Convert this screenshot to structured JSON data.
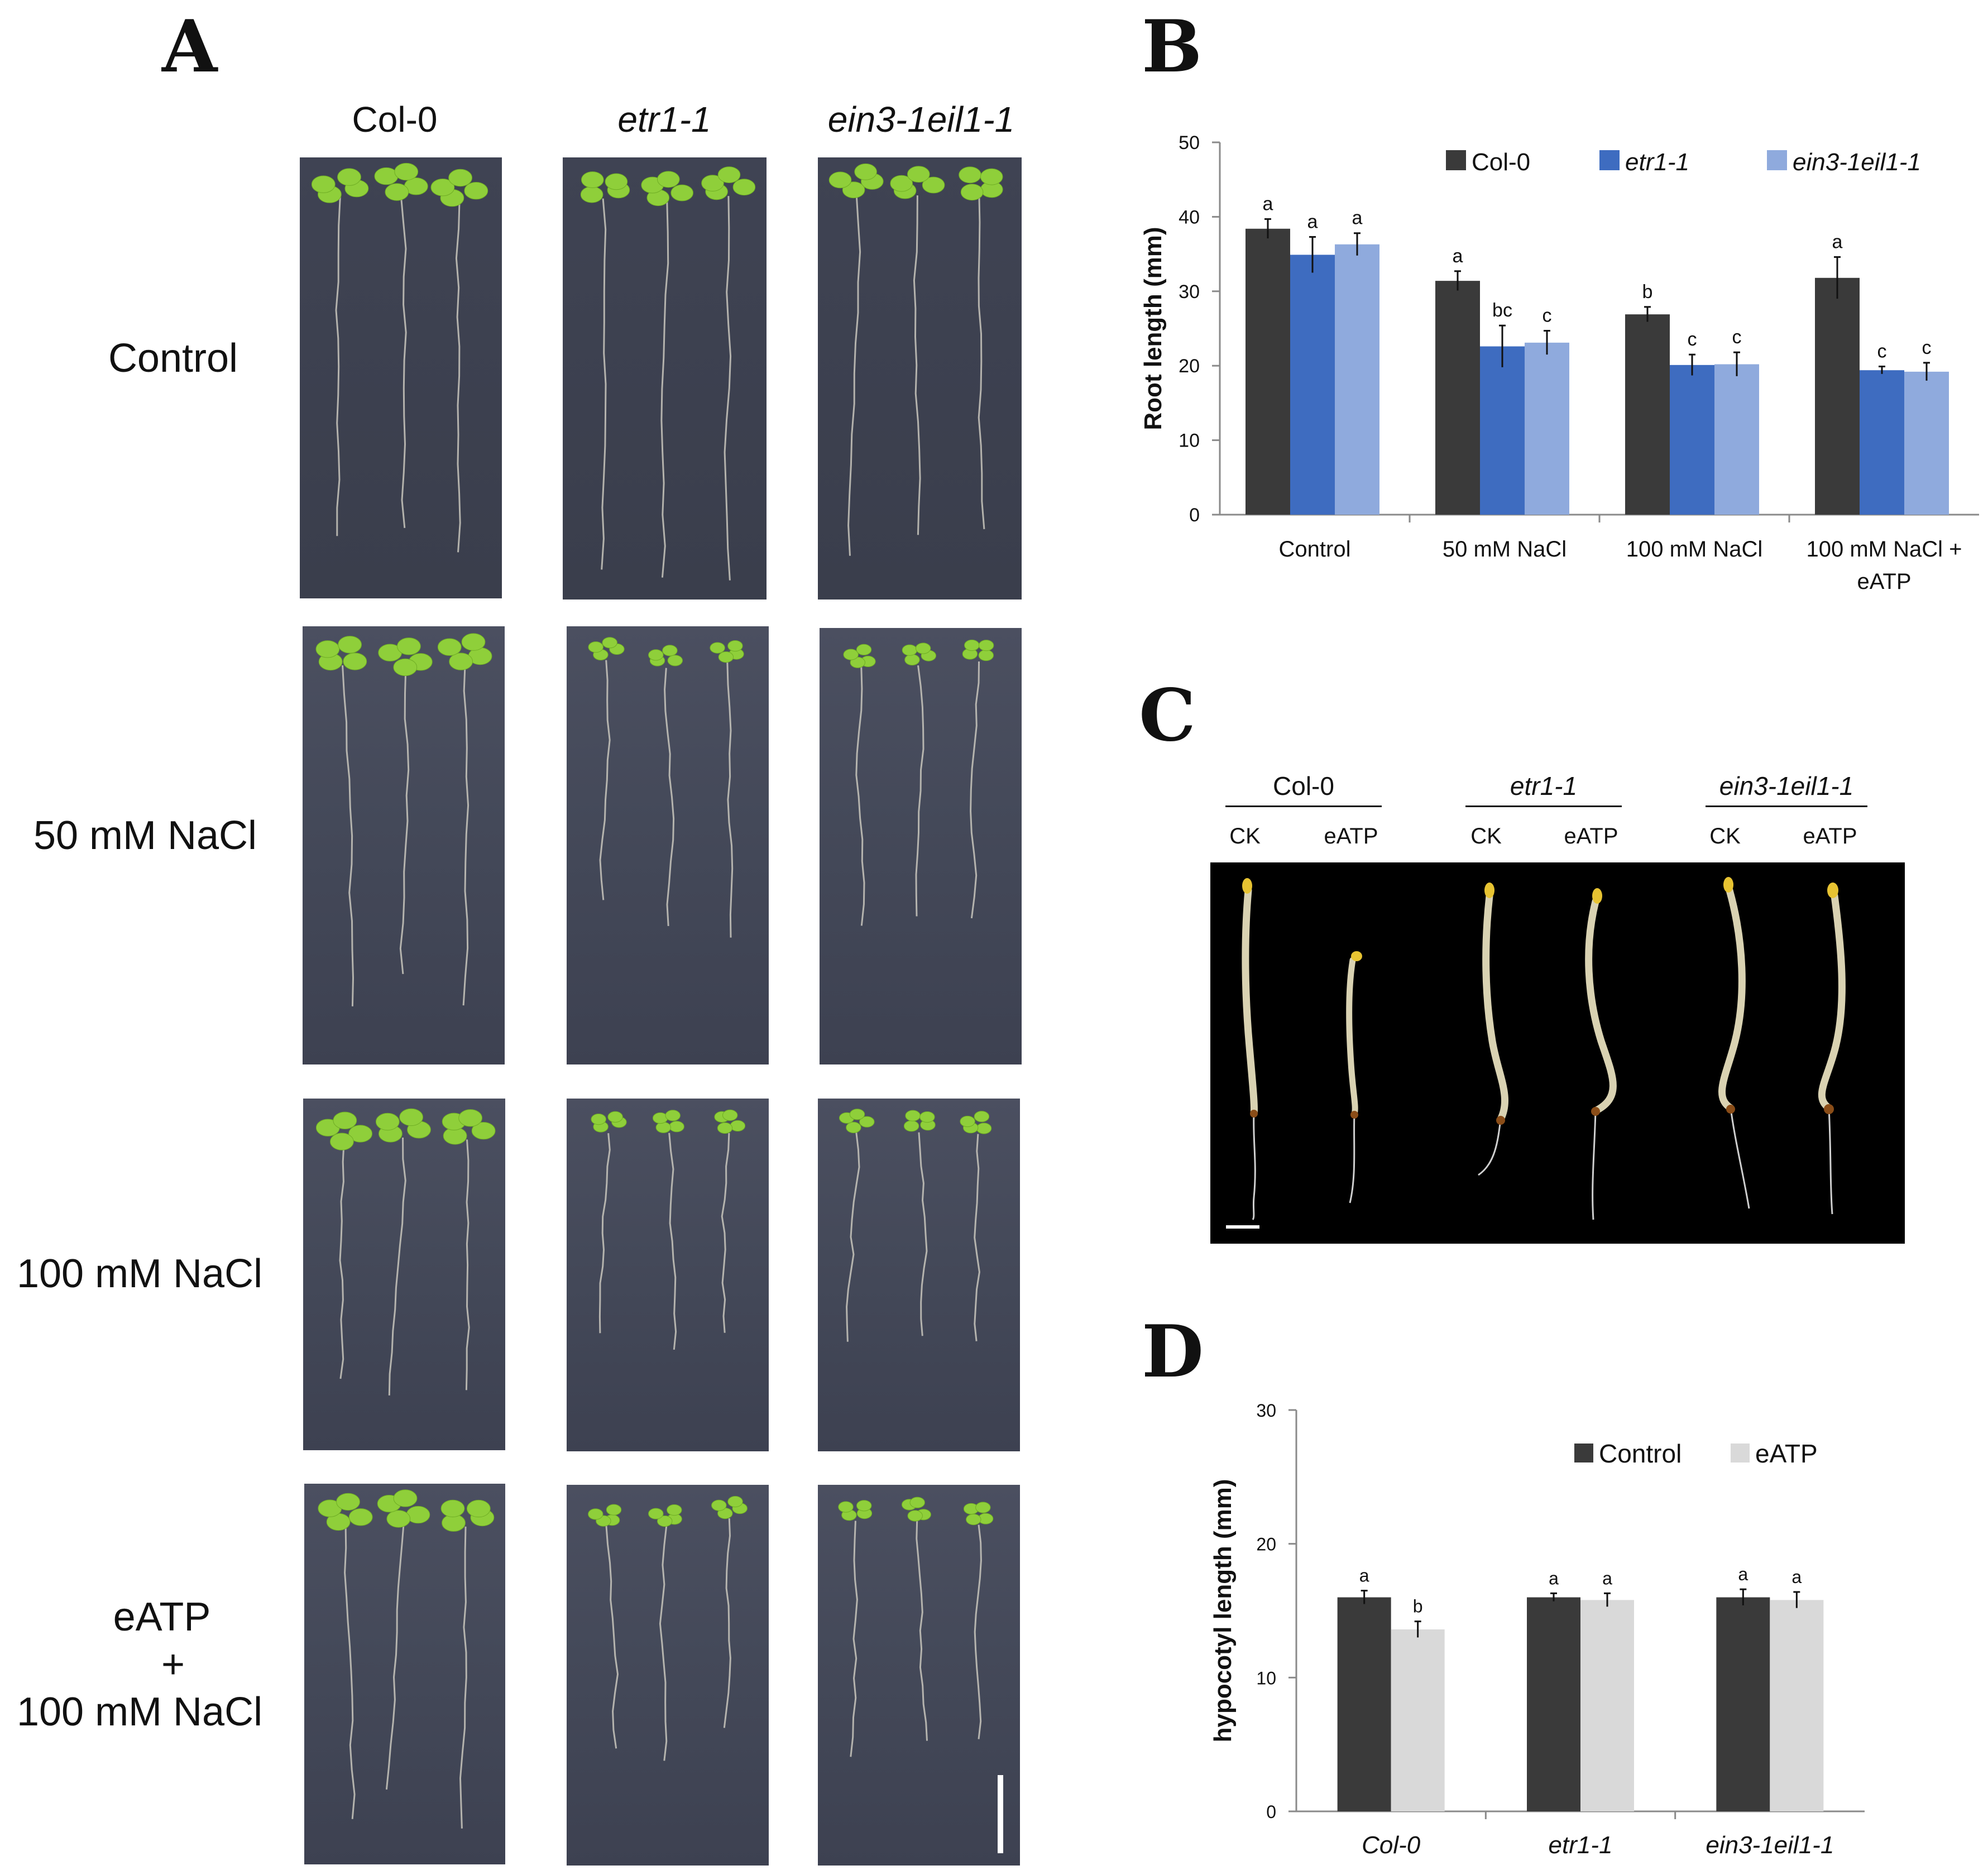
{
  "panels": {
    "A": "A",
    "B": "B",
    "C": "C",
    "D": "D"
  },
  "panel_a": {
    "columns": [
      "Col-0",
      "etr1-1",
      "ein3-1eil1-1"
    ],
    "rows": [
      "Control",
      "50 mM NaCl",
      "100 mM NaCl"
    ],
    "row4_lines": [
      "eATP",
      "+",
      "100 mM NaCl"
    ]
  },
  "panel_c": {
    "genotypes": [
      "Col-0",
      "etr1-1",
      "ein3-1eil1-1"
    ],
    "treatments": [
      "CK",
      "eATP",
      "CK",
      "eATP",
      "CK",
      "eATP"
    ]
  },
  "colors": {
    "col0": "#3a3a3a",
    "etr1": "#3e6cc0",
    "ein3": "#8faadd",
    "control": "#3a3a3a",
    "eatp": "#d9d9d9"
  },
  "chart_data": [
    {
      "type": "bar",
      "panel": "B",
      "ylabel": "Root length (mm)",
      "ylim": [
        0,
        50
      ],
      "yticks": [
        "0",
        "10",
        "20",
        "30",
        "40",
        "50"
      ],
      "categories": [
        "Control",
        "50 mM NaCl",
        "100 mM NaCl",
        "100 mM NaCl +\neATP"
      ],
      "legend_position": "top",
      "series": [
        {
          "name": "Col-0",
          "values": [
            38.4,
            31.4,
            26.9,
            31.8
          ],
          "errors": [
            1.3,
            1.3,
            1.0,
            2.8
          ],
          "letters": [
            "a",
            "a",
            "b",
            "a"
          ]
        },
        {
          "name": "etr1-1",
          "values": [
            34.9,
            22.6,
            20.1,
            19.4
          ],
          "errors": [
            2.4,
            2.8,
            1.4,
            0.5
          ],
          "letters": [
            "a",
            "bc",
            "c",
            "c"
          ]
        },
        {
          "name": "ein3-1eil1-1",
          "values": [
            36.3,
            23.1,
            20.2,
            19.2
          ],
          "errors": [
            1.5,
            1.6,
            1.6,
            1.2
          ],
          "letters": [
            "a",
            "c",
            "c",
            "c"
          ]
        }
      ]
    },
    {
      "type": "bar",
      "panel": "D",
      "ylabel": "hypocotyl length (mm)",
      "ylim": [
        0,
        30
      ],
      "yticks": [
        "0",
        "10",
        "20",
        "30"
      ],
      "categories": [
        "Col-0",
        "etr1-1",
        "ein3-1eil1-1"
      ],
      "legend_position": "top",
      "series": [
        {
          "name": "Control",
          "values": [
            16.0,
            16.0,
            16.0
          ],
          "errors": [
            0.5,
            0.3,
            0.6
          ],
          "letters": [
            "a",
            "a",
            "a"
          ]
        },
        {
          "name": "eATP",
          "values": [
            13.6,
            15.8,
            15.8
          ],
          "errors": [
            0.6,
            0.5,
            0.6
          ],
          "letters": [
            "b",
            "a",
            "a"
          ]
        }
      ]
    }
  ]
}
